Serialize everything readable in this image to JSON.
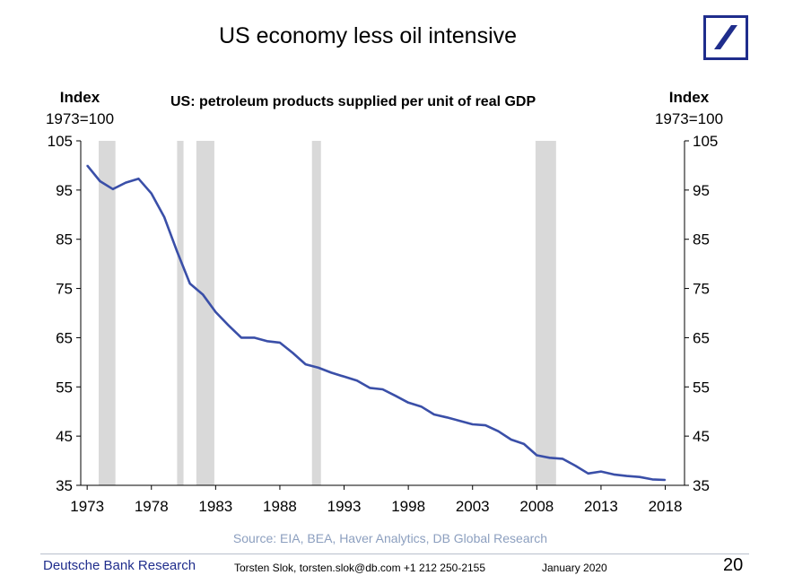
{
  "slide": {
    "title": "US economy less oil intensive"
  },
  "brand": {
    "color": "#1f2d8c",
    "logo": "deutsche-bank-slash-square-logo"
  },
  "footer": {
    "brand": "Deutsche Bank Research",
    "author": "Torsten Slok, torsten.slok@db.com  +1 212 250-2155",
    "date": "January 2020",
    "page_number": "20",
    "source": "Source: EIA, BEA, Haver Analytics, DB Global Research"
  },
  "chart_data": {
    "type": "line",
    "title": "US: petroleum products supplied per unit of real GDP",
    "left_axis_label": [
      "Index",
      "1973=100"
    ],
    "right_axis_label": [
      "Index",
      "1973=100"
    ],
    "xlim": [
      1972.5,
      2019.5
    ],
    "ylim": [
      35,
      105
    ],
    "x_ticks": [
      1973,
      1978,
      1983,
      1988,
      1993,
      1998,
      2003,
      2008,
      2013,
      2018
    ],
    "y_ticks": [
      35,
      45,
      55,
      65,
      75,
      85,
      95,
      105
    ],
    "grid": false,
    "line_color": "#3a4fa8",
    "recession_color": "#d9d9d9",
    "recessions": [
      {
        "start": 1973.9,
        "end": 1975.2
      },
      {
        "start": 1980.0,
        "end": 1980.5
      },
      {
        "start": 1981.5,
        "end": 1982.9
      },
      {
        "start": 1990.5,
        "end": 1991.2
      },
      {
        "start": 2007.9,
        "end": 2009.5
      }
    ],
    "series": [
      {
        "x": [
          1973,
          1974,
          1975,
          1976,
          1977,
          1978,
          1979,
          1980,
          1981,
          1982,
          1983,
          1984,
          1985,
          1986,
          1987,
          1988,
          1989,
          1990,
          1991,
          1992,
          1993,
          1994,
          1995,
          1996,
          1997,
          1998,
          1999,
          2000,
          2001,
          2002,
          2003,
          2004,
          2005,
          2006,
          2007,
          2008,
          2009,
          2010,
          2011,
          2012,
          2013,
          2014,
          2015,
          2016,
          2017,
          2018
        ],
        "values": [
          100,
          96.8,
          95.2,
          96.5,
          97.3,
          94.3,
          89.5,
          82.5,
          76.0,
          73.8,
          70.2,
          67.5,
          65.0,
          65.0,
          64.3,
          64.0,
          61.9,
          59.6,
          58.9,
          57.9,
          57.1,
          56.3,
          54.8,
          54.5,
          53.2,
          51.8,
          51.0,
          49.4,
          48.8,
          48.1,
          47.4,
          47.2,
          46.0,
          44.3,
          43.4,
          41.1,
          40.6,
          40.4,
          39.0,
          37.4,
          37.8,
          37.2,
          36.9,
          36.7,
          36.2,
          36.1
        ]
      }
    ]
  }
}
